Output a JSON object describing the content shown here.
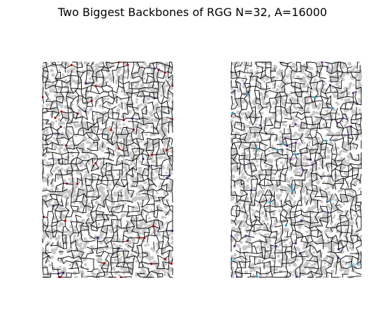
{
  "figure": {
    "title": "Two Biggest Backbones of RGG N=32, A=16000"
  },
  "colors": {
    "background": "#ffffff",
    "node_gray": "#c8c8c8",
    "edge_black": "#000000",
    "accent_left": [
      "#b00000",
      "#7a0030",
      "#3a1a6e"
    ],
    "accent_right": [
      "#1aa3d9",
      "#3a1a6e",
      "#6a2a8a"
    ]
  },
  "panels": [
    {
      "id": "left",
      "accent": "accent_left"
    },
    {
      "id": "right",
      "accent": "accent_right"
    }
  ]
}
